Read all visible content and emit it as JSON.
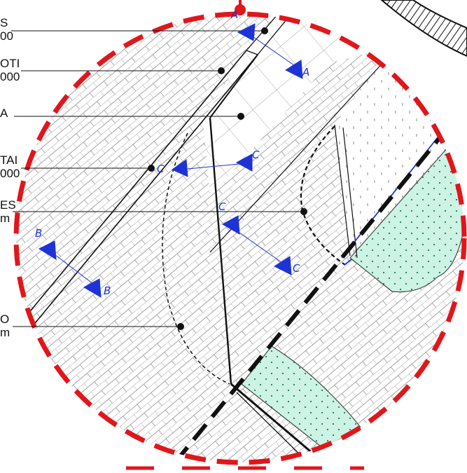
{
  "labels": [
    {
      "line1": "S",
      "line2": "00"
    },
    {
      "line1": "OTI",
      "line2": "000"
    },
    {
      "line1": "",
      "line2": "A"
    },
    {
      "line1": "TAI",
      "line2": "000"
    },
    {
      "line1": "ES",
      "line2": "m"
    },
    {
      "line1": "O",
      "line2": "m"
    }
  ],
  "section_marks": {
    "a": "A",
    "b": "B",
    "c": "C"
  },
  "colors": {
    "detail_circle": "#e0161b",
    "section_marker": "#1e33d6",
    "soil_fill": "#cdf3e4",
    "soil_dots": "#1d7a55",
    "masonry_hatch": "#9a9a9a",
    "ink": "#111111"
  }
}
